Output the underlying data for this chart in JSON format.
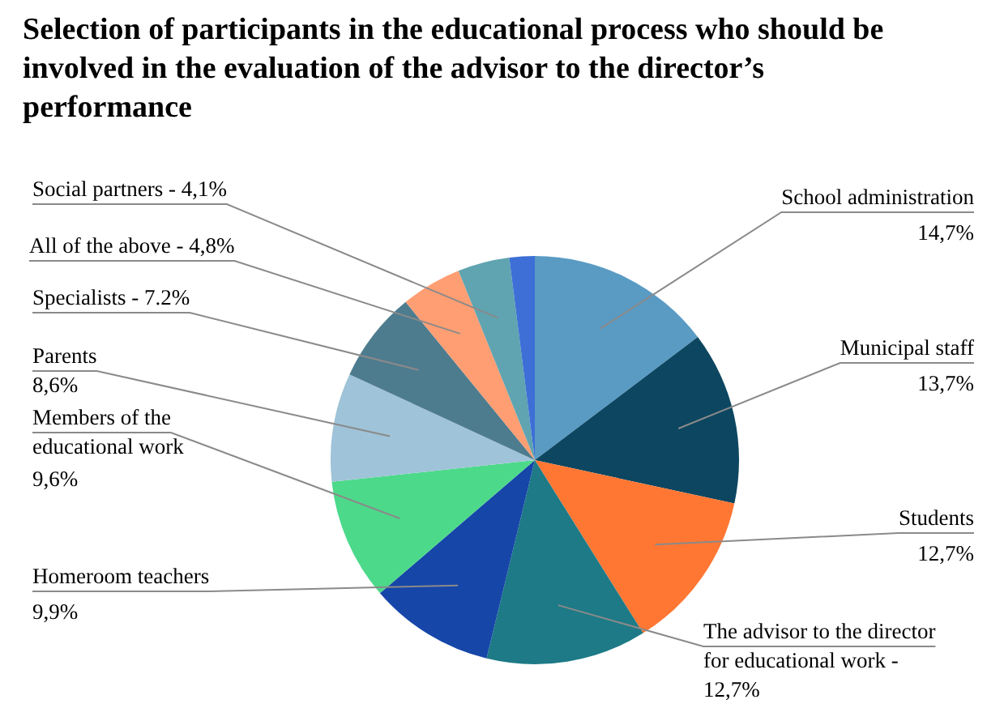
{
  "chart_data": {
    "type": "pie",
    "title": "Selection of participants in the educational process who should be involved in the evaluation of the advisor to the director’s performance",
    "categories": [
      "School administration",
      "Municipal staff",
      "Students",
      "The advisor to the director for educational work -",
      "Homeroom teachers",
      "Members of the educational work",
      "Parents",
      "Specialists - 7.2%",
      "All of the above - 4,8%",
      "Social partners - 4,1%",
      null
    ],
    "values": [
      14.7,
      13.7,
      12.7,
      12.7,
      9.9,
      9.6,
      8.6,
      7.2,
      4.8,
      4.1,
      2.0
    ],
    "value_labels": [
      "14,7%",
      "13,7%",
      "12,7%",
      "12,7%",
      "9,9%",
      "9,6%",
      "8,6%",
      null,
      null,
      null,
      null
    ],
    "colors": [
      "#5a9bc4",
      "#0d4660",
      "#ff7733",
      "#1d7a86",
      "#1646a8",
      "#4cd98a",
      "#9fc3d8",
      "#4e7c8f",
      "#ff9e73",
      "#5fa4b0",
      "#3d6fd6"
    ]
  }
}
